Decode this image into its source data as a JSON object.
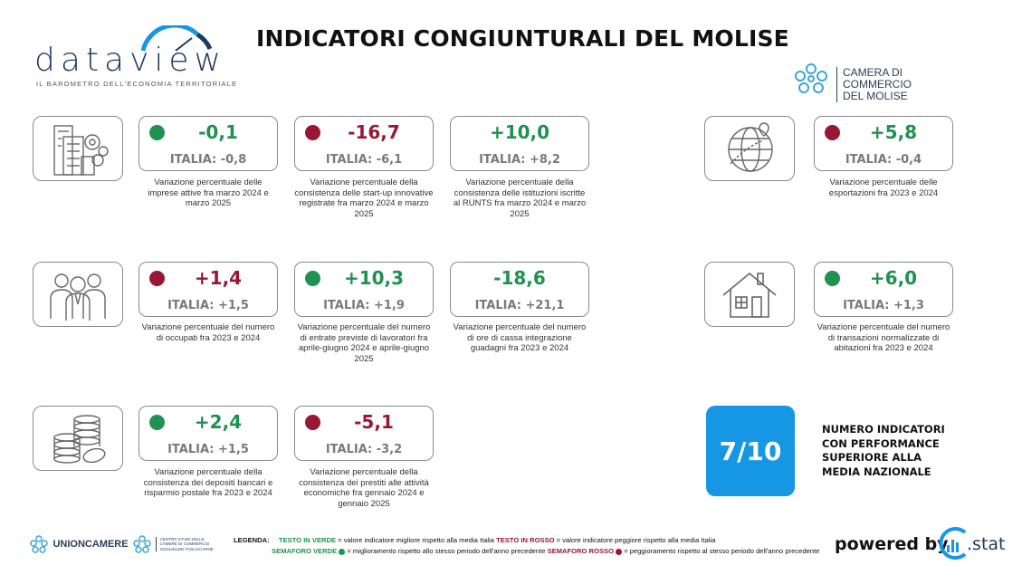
{
  "header": {
    "logo_word": "dataview",
    "logo_tagline": "IL BAROMETRO DELL'ECONOMIA TERRITORIALE",
    "title": "INDICATORI CONGIUNTURALI DEL MOLISE",
    "cciaa_line1": "CAMERA DI COMMERCIO",
    "cciaa_line2": "DEL MOLISE"
  },
  "colors": {
    "green": "#1f9150",
    "red": "#9a1733",
    "accent_blue": "#1597e5"
  },
  "icons": {
    "row1": "office-buildings-gears-icon",
    "row1_right": "globe-icon",
    "row2": "business-people-icon",
    "row2_right": "house-icon",
    "row3": "coin-stack-icon"
  },
  "indicators": [
    {
      "value": "-0,1",
      "value_color": "green",
      "semaphore": "green",
      "italia": "ITALIA: -0,8",
      "desc": "Variazione percentuale delle imprese attive fra marzo 2024 e marzo 2025"
    },
    {
      "value": "-16,7",
      "value_color": "red",
      "semaphore": "red",
      "italia": "ITALIA: -6,1",
      "desc": "Variazione percentuale della consistenza delle start-up innovative registrate fra marzo 2024 e marzo 2025"
    },
    {
      "value": "+10,0",
      "value_color": "green",
      "semaphore": "none",
      "italia": "ITALIA: +8,2",
      "desc": "Variazione percentuale della consistenza delle istituzioni iscritte al RUNTS fra marzo 2024 e marzo 2025"
    },
    {
      "value": "+5,8",
      "value_color": "green",
      "semaphore": "red",
      "italia": "ITALIA: -0,4",
      "desc": "Variazione percentuale delle esportazioni fra 2023 e 2024"
    },
    {
      "value": "+1,4",
      "value_color": "red",
      "semaphore": "red",
      "italia": "ITALIA: +1,5",
      "desc": "Variazione percentuale del numero di occupati fra 2023 e 2024"
    },
    {
      "value": "+10,3",
      "value_color": "green",
      "semaphore": "green",
      "italia": "ITALIA: +1,9",
      "desc": "Variazione percentuale del numero di entrate previste di lavoratori fra aprile-giugno 2024 e aprile-giugno 2025"
    },
    {
      "value": "-18,6",
      "value_color": "green",
      "semaphore": "none",
      "italia": "ITALIA: +21,1",
      "desc": "Variazione percentuale del numero di ore di cassa integrazione guadagni fra 2023 e 2024"
    },
    {
      "value": "+6,0",
      "value_color": "green",
      "semaphore": "green",
      "italia": "ITALIA: +1,3",
      "desc": "Variazione percentuale del numero di transazioni normalizzate di abitazioni fra 2023 e 2024"
    },
    {
      "value": "+2,4",
      "value_color": "green",
      "semaphore": "green",
      "italia": "ITALIA: +1,5",
      "desc": "Variazione percentuale della consistenza dei depositi bancari e risparmio postale fra 2023 e 2024"
    },
    {
      "value": "-5,1",
      "value_color": "red",
      "semaphore": "red",
      "italia": "ITALIA: -3,2",
      "desc": "Variazione percentuale della consistenza dei prestiti alle attività economiche fra gennaio 2024 e gennaio 2025"
    }
  ],
  "summary": {
    "score": "7/10",
    "line1": "NUMERO INDICATORI",
    "line2": "CON PERFORMANCE",
    "line3": "SUPERIORE ALLA",
    "line4": "MEDIA NAZIONALE"
  },
  "footer": {
    "unioncamere": "UNIONCAMERE",
    "tagliacarne_line1": "CENTRO STUDI DELLE",
    "tagliacarne_line2": "CAMERE DI COMMERCIO",
    "tagliacarne_line3": "GUGLIELMO TAGLIACARNE",
    "legend_title": "LEGENDA:",
    "legend_green_text": "TESTO IN VERDE",
    "legend_green_desc": " = valore indicatore migliore rispetto alla media Italia ",
    "legend_red_text": "TESTO IN ROSSO",
    "legend_red_desc": " = valore indicatore peggiore rispetto alla media Italia",
    "legend_sem_green": "SEMAFORO VERDE",
    "legend_sem_green_desc": " = miglioramento rispetto allo stesso periodo dell'anno precedente ",
    "legend_sem_red": "SEMAFORO ROSSO",
    "legend_sem_red_desc": " = peggioramento rispetto al stesso periodo dell'anno precedente",
    "powered_by": "powered by",
    "cstat": ".stat"
  }
}
